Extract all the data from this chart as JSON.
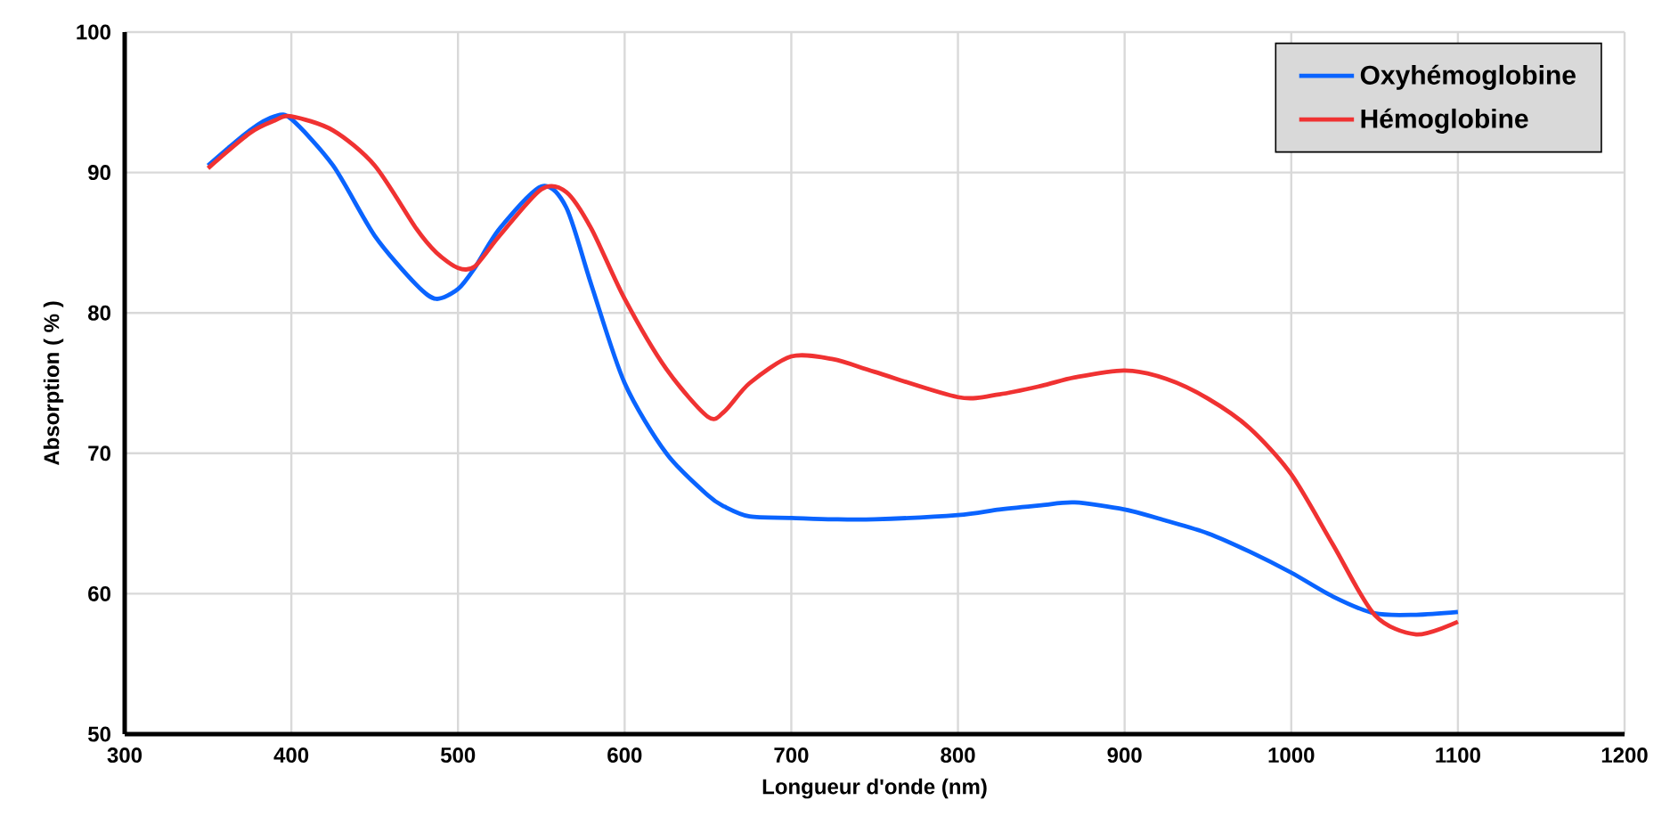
{
  "chart_data": {
    "type": "line",
    "xlabel": "Longueur d'onde (nm)",
    "ylabel": "Absorption ( % )",
    "x": [
      350,
      375,
      390,
      400,
      425,
      450,
      475,
      487,
      500,
      510,
      525,
      550,
      565,
      580,
      600,
      625,
      650,
      660,
      675,
      700,
      725,
      750,
      800,
      825,
      850,
      870,
      900,
      925,
      950,
      975,
      1000,
      1025,
      1050,
      1075,
      1100
    ],
    "series": [
      {
        "name": "Oxyhémoglobine",
        "color": "#0a64ff",
        "values": [
          90.5,
          93,
          94,
          93.8,
          90.5,
          85.5,
          82,
          81,
          81.7,
          83.2,
          86,
          89,
          87.5,
          82,
          75,
          70,
          67,
          66.2,
          65.5,
          65.4,
          65.3,
          65.3,
          65.6,
          66,
          66.3,
          66.5,
          66,
          65.2,
          64.3,
          63,
          61.5,
          59.8,
          58.6,
          58.5,
          58.7
        ]
      },
      {
        "name": "Hémoglobine",
        "color": "#f03232",
        "values": [
          90.3,
          92.8,
          93.7,
          94,
          93,
          90.5,
          86,
          84.3,
          83.2,
          83.3,
          85.5,
          88.8,
          88.6,
          86,
          81,
          76,
          72.6,
          73,
          75,
          76.9,
          76.7,
          75.8,
          74,
          74.2,
          74.8,
          75.4,
          75.9,
          75.3,
          73.9,
          71.8,
          68.5,
          63.5,
          58.5,
          57.1,
          58
        ]
      }
    ],
    "xlim": [
      300,
      1200
    ],
    "xticks": [
      300,
      400,
      500,
      600,
      700,
      800,
      900,
      1000,
      1100,
      1200
    ],
    "ylim": [
      50,
      100
    ],
    "yticks": [
      50,
      60,
      70,
      80,
      90,
      100
    ],
    "grid": true,
    "legend": "top right",
    "marker": "none",
    "line_style": "solid"
  }
}
